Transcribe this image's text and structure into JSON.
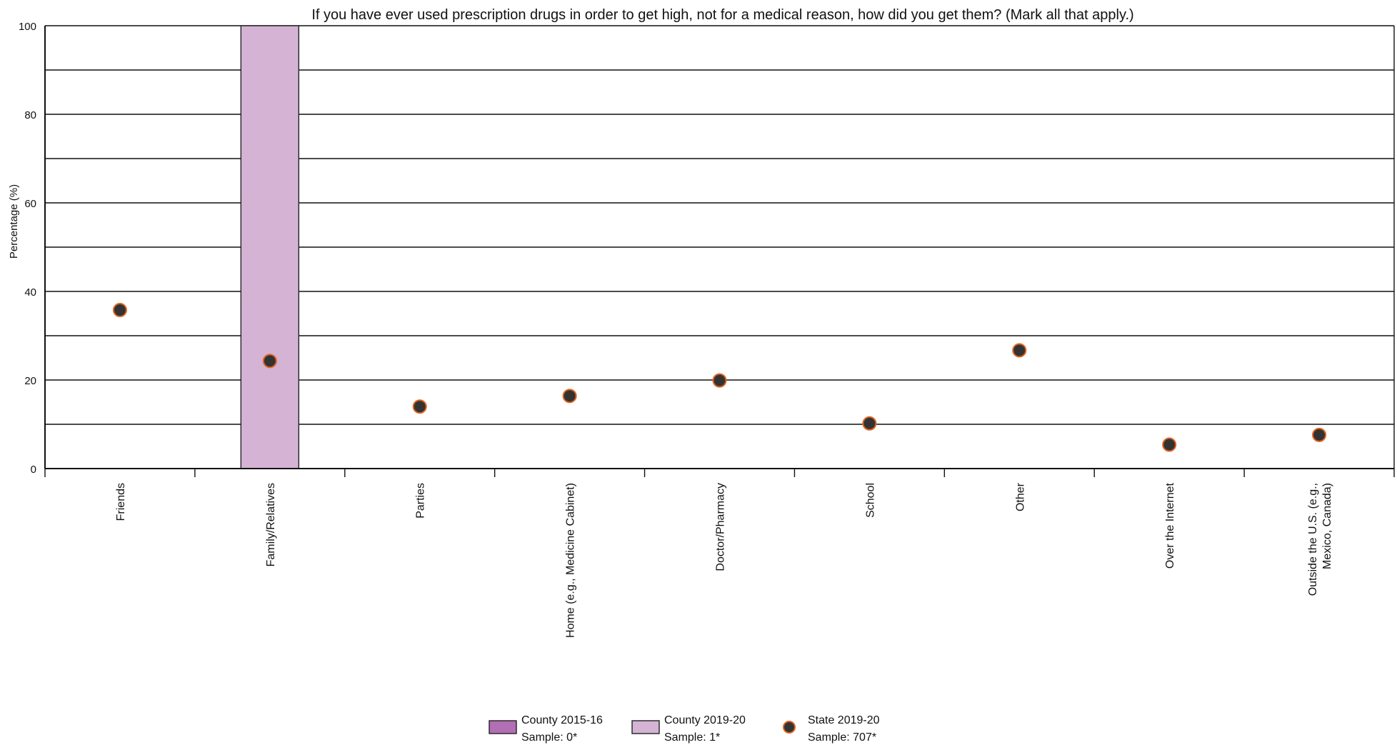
{
  "chart_data": {
    "type": "bar",
    "title": "If you have ever used prescription drugs in order to get high, not for a medical reason, how did you get them? (Mark all that apply.)",
    "xlabel": "",
    "ylabel": "Percentage (%)",
    "ylim": [
      0,
      100
    ],
    "yticks": [
      0,
      20,
      40,
      60,
      80,
      100
    ],
    "grid": true,
    "legend_position": "bottom",
    "categories": [
      "Friends",
      "Family/Relatives",
      "Parties",
      "Home (e.g., Medicine Cabinet)",
      "Doctor/Pharmacy",
      "School",
      "Other",
      "Over the Internet",
      "Outside the U.S. (e.g., Mexico, Canada)"
    ],
    "series": [
      {
        "name": "County 2015-16",
        "sample_label": "Sample: 0*",
        "kind": "bar",
        "color": "#b36fb3",
        "values": [
          null,
          null,
          null,
          null,
          null,
          null,
          null,
          null,
          null
        ]
      },
      {
        "name": "County 2019-20",
        "sample_label": "Sample: 1*",
        "kind": "bar",
        "color": "#d4b3d4",
        "values": [
          0,
          100,
          0,
          0,
          0,
          0,
          0,
          0,
          0
        ]
      },
      {
        "name": "State 2019-20",
        "sample_label": "Sample: 707*",
        "kind": "point",
        "color": "#333333",
        "edge_color": "#e0641e",
        "values": [
          35.8,
          24.3,
          14.0,
          16.4,
          19.9,
          10.2,
          26.7,
          5.4,
          7.6
        ]
      }
    ]
  }
}
